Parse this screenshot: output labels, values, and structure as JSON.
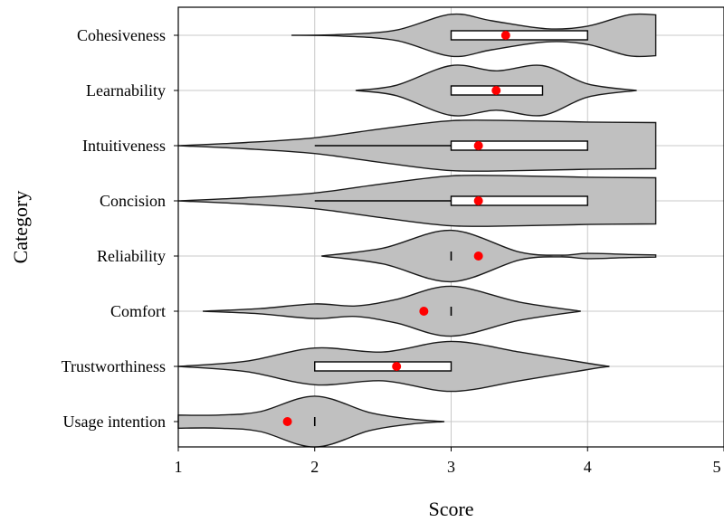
{
  "chart_data": {
    "type": "violin",
    "title": "",
    "xlabel": "Score",
    "ylabel": "Category",
    "xlim": [
      1,
      5
    ],
    "xticks": [
      1,
      2,
      3,
      4,
      5
    ],
    "grid": true,
    "colors": {
      "violin_fill": "#c0c0c0",
      "outline": "#1a1a1a",
      "box_fill": "#ffffff",
      "mean_point": "#ff0000",
      "grid": "#c8c8c8"
    },
    "categories": [
      {
        "name": "Cohesiveness",
        "mean": 3.4,
        "q1": 3.0,
        "median": 3.0,
        "q3": 4.0,
        "whisker_low": 3.0,
        "whisker_high": 4.0,
        "density": [
          [
            1.83,
            0.0
          ],
          [
            2.2,
            0.03
          ],
          [
            2.6,
            0.2
          ],
          [
            3.0,
            0.8
          ],
          [
            3.3,
            0.55
          ],
          [
            3.7,
            0.25
          ],
          [
            4.0,
            0.35
          ],
          [
            4.3,
            0.78
          ],
          [
            4.5,
            0.78
          ]
        ]
      },
      {
        "name": "Learnability",
        "mean": 3.33,
        "q1": 3.0,
        "median": 3.0,
        "q3": 3.67,
        "whisker_low": 3.0,
        "whisker_high": 3.67,
        "density": [
          [
            2.3,
            0.0
          ],
          [
            2.6,
            0.2
          ],
          [
            3.0,
            0.95
          ],
          [
            3.33,
            0.75
          ],
          [
            3.67,
            0.95
          ],
          [
            4.0,
            0.25
          ],
          [
            4.36,
            0.0
          ]
        ]
      },
      {
        "name": "Intuitiveness",
        "mean": 3.2,
        "q1": 3.0,
        "median": 3.0,
        "q3": 4.0,
        "whisker_low": 2.0,
        "whisker_high": 4.0,
        "density": [
          [
            1.0,
            0.0
          ],
          [
            1.5,
            0.12
          ],
          [
            2.0,
            0.3
          ],
          [
            2.5,
            0.65
          ],
          [
            3.0,
            0.95
          ],
          [
            3.5,
            0.95
          ],
          [
            4.0,
            0.9
          ],
          [
            4.5,
            0.88
          ]
        ]
      },
      {
        "name": "Concision",
        "mean": 3.2,
        "q1": 3.0,
        "median": 3.0,
        "q3": 4.0,
        "whisker_low": 2.0,
        "whisker_high": 4.0,
        "density": [
          [
            1.0,
            0.0
          ],
          [
            1.5,
            0.12
          ],
          [
            2.0,
            0.3
          ],
          [
            2.5,
            0.65
          ],
          [
            3.0,
            0.95
          ],
          [
            3.5,
            0.95
          ],
          [
            4.0,
            0.9
          ],
          [
            4.5,
            0.88
          ]
        ]
      },
      {
        "name": "Reliability",
        "mean": 3.2,
        "q1": 3.0,
        "median": 3.0,
        "q3": 3.0,
        "whisker_low": 3.0,
        "whisker_high": 3.0,
        "density": [
          [
            2.05,
            0.0
          ],
          [
            2.5,
            0.3
          ],
          [
            3.0,
            0.98
          ],
          [
            3.5,
            0.15
          ],
          [
            3.8,
            0.03
          ],
          [
            4.0,
            0.1
          ],
          [
            4.3,
            0.06
          ],
          [
            4.5,
            0.04
          ]
        ]
      },
      {
        "name": "Comfort",
        "mean": 2.8,
        "q1": 3.0,
        "median": 3.0,
        "q3": 3.0,
        "whisker_low": 3.0,
        "whisker_high": 3.0,
        "density": [
          [
            1.18,
            0.0
          ],
          [
            1.6,
            0.1
          ],
          [
            2.0,
            0.28
          ],
          [
            2.3,
            0.2
          ],
          [
            2.6,
            0.45
          ],
          [
            3.0,
            0.95
          ],
          [
            3.5,
            0.35
          ],
          [
            3.95,
            0.0
          ]
        ]
      },
      {
        "name": "Trustworthiness",
        "mean": 2.6,
        "q1": 2.0,
        "median": 3.0,
        "q3": 3.0,
        "whisker_low": 2.0,
        "whisker_high": 3.0,
        "density": [
          [
            1.0,
            0.0
          ],
          [
            1.5,
            0.2
          ],
          [
            2.0,
            0.7
          ],
          [
            2.5,
            0.55
          ],
          [
            3.0,
            0.95
          ],
          [
            3.5,
            0.55
          ],
          [
            4.0,
            0.12
          ],
          [
            4.16,
            0.0
          ]
        ]
      },
      {
        "name": "Usage intention",
        "mean": 1.8,
        "q1": 2.0,
        "median": 2.0,
        "q3": 2.0,
        "whisker_low": 2.0,
        "whisker_high": 2.0,
        "density": [
          [
            1.0,
            0.25
          ],
          [
            1.3,
            0.25
          ],
          [
            1.6,
            0.38
          ],
          [
            2.0,
            0.97
          ],
          [
            2.4,
            0.35
          ],
          [
            2.7,
            0.1
          ],
          [
            2.95,
            0.0
          ]
        ]
      }
    ]
  }
}
